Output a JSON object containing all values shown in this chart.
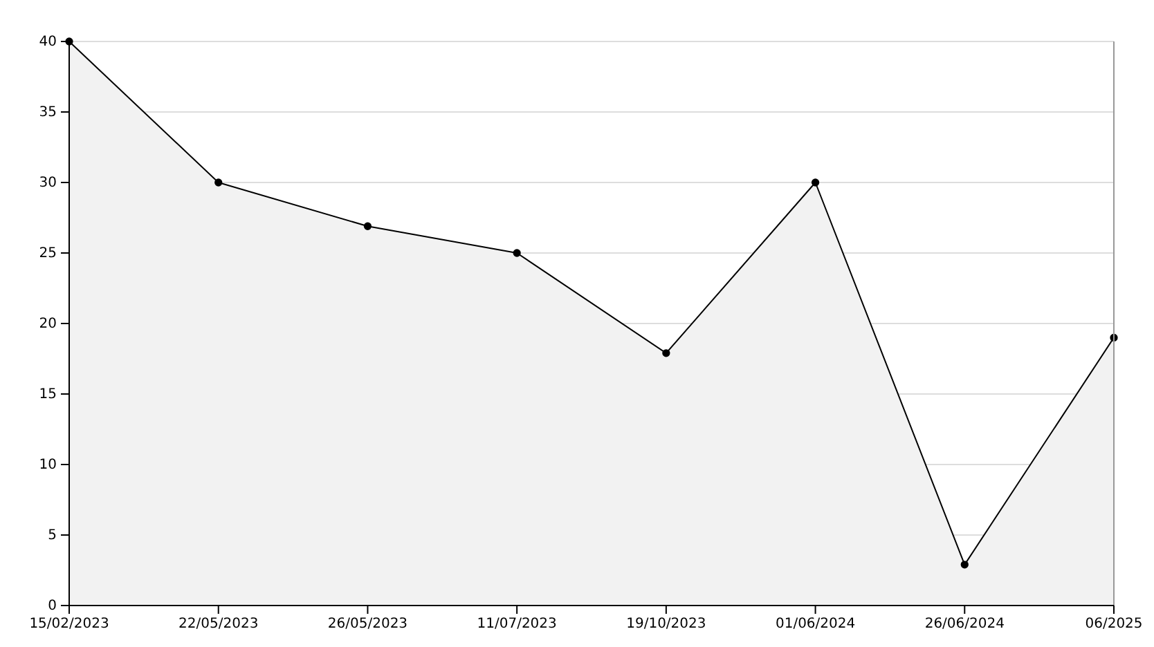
{
  "chart_data": {
    "type": "area",
    "categories": [
      "15/02/2023",
      "22/05/2023",
      "26/05/2023",
      "11/07/2023",
      "19/10/2023",
      "01/06/2024",
      "26/06/2024",
      "06/2025"
    ],
    "series": [
      {
        "color": "#000000",
        "values": [
          40,
          30,
          26.9,
          25,
          17.9,
          30,
          2.9,
          19
        ]
      }
    ],
    "ylim": [
      0,
      40
    ],
    "yticks": [
      0,
      5,
      10,
      15,
      20,
      25,
      30,
      35,
      40
    ],
    "grid": "y",
    "marker": "circle",
    "line_style": "solid"
  }
}
